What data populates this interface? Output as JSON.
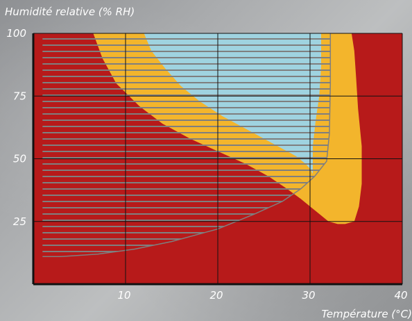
{
  "chart_data": {
    "type": "area",
    "title": "",
    "ylabel": "Humidité relative (% RH)",
    "xlabel": "Température (°C)",
    "xlim": [
      0,
      40
    ],
    "ylim": [
      0,
      100
    ],
    "x_ticks": [
      10,
      20,
      30,
      40
    ],
    "y_ticks": [
      25,
      50,
      75,
      100
    ],
    "grid": true,
    "colors": {
      "background_zone": "#b71a1a",
      "middle_zone": "#f3b52c",
      "inner_zone": "#9fd3e0",
      "grid": "#111111",
      "hatch": "#7f7f7f",
      "axis": "#111111",
      "text": "#ffffff"
    },
    "series": [
      {
        "values": [
          [
            6.5,
            100
          ],
          [
            7.5,
            90
          ],
          [
            9.0,
            80
          ],
          [
            11.5,
            71
          ],
          [
            14.0,
            64
          ],
          [
            17.0,
            58
          ],
          [
            20.0,
            53
          ],
          [
            23.0,
            48
          ],
          [
            25.5,
            43
          ],
          [
            27.5,
            38
          ],
          [
            29.0,
            34
          ],
          [
            30.0,
            31
          ],
          [
            31.0,
            28
          ],
          [
            32.0,
            25
          ],
          [
            33.0,
            24
          ],
          [
            33.8,
            24
          ],
          [
            34.8,
            25
          ],
          [
            35.3,
            31
          ],
          [
            35.6,
            40
          ],
          [
            35.6,
            55
          ],
          [
            35.2,
            70
          ],
          [
            35.0,
            82
          ],
          [
            34.8,
            93
          ],
          [
            34.5,
            100
          ]
        ]
      },
      {
        "values": [
          [
            12.0,
            100
          ],
          [
            12.8,
            93
          ],
          [
            14.3,
            86
          ],
          [
            16.0,
            79
          ],
          [
            18.0,
            73
          ],
          [
            20.5,
            67
          ],
          [
            23.5,
            61
          ],
          [
            26.5,
            55
          ],
          [
            28.5,
            51
          ],
          [
            29.5,
            48
          ],
          [
            30.0,
            46
          ],
          [
            30.3,
            44
          ],
          [
            30.3,
            55
          ],
          [
            30.6,
            65
          ],
          [
            31.0,
            75
          ],
          [
            31.2,
            87
          ],
          [
            31.2,
            100
          ]
        ]
      },
      {
        "values": [
          [
            1.0,
            11
          ],
          [
            3.0,
            11
          ],
          [
            7.0,
            12
          ],
          [
            11.0,
            14
          ],
          [
            15.0,
            17
          ],
          [
            20.0,
            22
          ],
          [
            24.0,
            28
          ],
          [
            27.0,
            33
          ],
          [
            29.0,
            38
          ],
          [
            30.5,
            43
          ],
          [
            31.8,
            49
          ],
          [
            32.1,
            60
          ],
          [
            32.2,
            80
          ],
          [
            32.2,
            100
          ]
        ]
      }
    ]
  }
}
